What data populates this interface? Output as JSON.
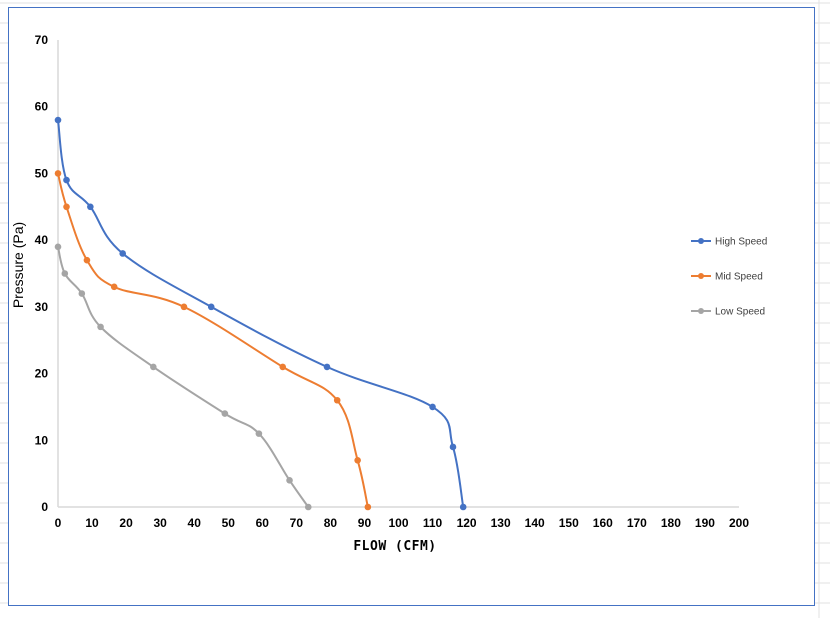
{
  "chart_data": {
    "type": "scatter",
    "title": "",
    "xlabel": "FLOW (CFM)",
    "ylabel": "Pressure (Pa)",
    "xlim": [
      0,
      200
    ],
    "ylim": [
      0,
      70
    ],
    "x_ticks": [
      "0",
      "10",
      "20",
      "30",
      "40",
      "50",
      "60",
      "70",
      "80",
      "90",
      "100",
      "110",
      "120",
      "130",
      "140",
      "150",
      "160",
      "170",
      "180",
      "190",
      "200"
    ],
    "y_ticks": [
      "0",
      "10",
      "20",
      "30",
      "40",
      "50",
      "60",
      "70"
    ],
    "grid": false,
    "legend_position": "right",
    "smooth_lines": true,
    "series": [
      {
        "name": "High Speed",
        "color": "#4472c4",
        "points": [
          [
            0,
            58
          ],
          [
            2.5,
            49
          ],
          [
            9.5,
            45
          ],
          [
            19,
            38
          ],
          [
            45,
            30
          ],
          [
            79,
            21
          ],
          [
            110,
            15
          ],
          [
            116,
            9
          ],
          [
            119,
            0
          ]
        ]
      },
      {
        "name": "Mid Speed",
        "color": "#ed7d31",
        "points": [
          [
            0,
            50
          ],
          [
            2.5,
            45
          ],
          [
            8.5,
            37
          ],
          [
            16.5,
            33
          ],
          [
            37,
            30
          ],
          [
            66,
            21
          ],
          [
            82,
            16
          ],
          [
            88,
            7
          ],
          [
            91,
            0
          ]
        ]
      },
      {
        "name": "Low Speed",
        "color": "#a5a5a5",
        "points": [
          [
            0,
            39
          ],
          [
            2,
            35
          ],
          [
            7,
            32
          ],
          [
            12.5,
            27
          ],
          [
            28,
            21
          ],
          [
            49,
            14
          ],
          [
            59,
            11
          ],
          [
            68,
            4
          ],
          [
            73.5,
            0
          ]
        ]
      }
    ]
  }
}
